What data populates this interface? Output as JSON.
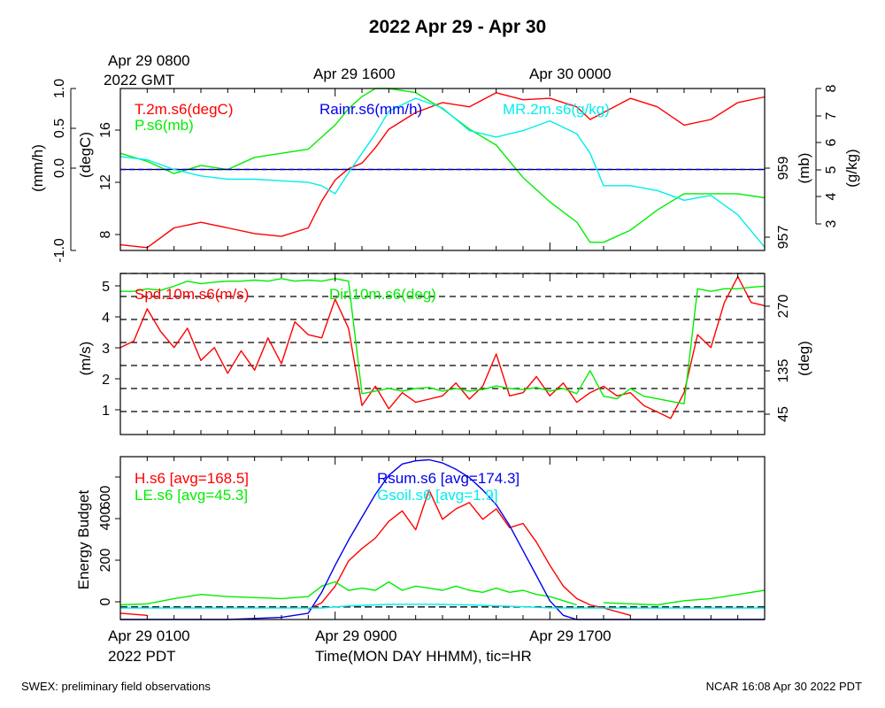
{
  "title": "2022 Apr 29 - Apr 30",
  "top_time_labels": {
    "first_date": "Apr 29 0800",
    "first_year": "2022 GMT",
    "second": "Apr 29 1600",
    "third": "Apr 30 0000"
  },
  "bottom_time_labels": {
    "first_date": "Apr 29 0100",
    "first_year": "2022 PDT",
    "second": "Apr 29 0900",
    "third": "Apr 29 1700"
  },
  "xlabel": "Time(MON DAY HHMM), tic=HR",
  "footer_left": "SWEX: preliminary field observations",
  "footer_right": "NCAR 16:08 Apr 30 2022 PDT",
  "colors": {
    "red": "#ff0000",
    "green": "#00ee00",
    "blue": "#0000ee",
    "cyan": "#00eeee",
    "axis": "#000000"
  },
  "chart_data": [
    {
      "type": "line",
      "panel": "met",
      "x_hours_pdt": [
        0,
        1,
        2,
        3,
        4,
        5,
        6,
        7,
        7.5,
        8,
        8.5,
        9,
        9.5,
        10,
        11,
        12,
        13,
        14,
        15,
        16,
        17,
        17.5,
        18,
        19,
        20,
        21,
        22,
        23,
        24
      ],
      "xlim": [
        0,
        24
      ],
      "axes": {
        "rain": {
          "label": "(mm/h)",
          "ticks": [
            "1.0",
            "0.5",
            "0.0",
            "-1.0"
          ],
          "range": [
            -1,
            1
          ]
        },
        "temp": {
          "label": "(degC)",
          "ticks": [
            "16",
            "12",
            "8"
          ],
          "range": [
            7,
            18.5
          ]
        },
        "pressure": {
          "label": "(mb)",
          "ticks": [
            "959",
            "957"
          ],
          "range": [
            956.8,
            960.8
          ]
        },
        "mr": {
          "label": "(g/kg)",
          "ticks": [
            "3",
            "4",
            "5",
            "6",
            "7",
            "8"
          ],
          "range": [
            3,
            8
          ]
        }
      },
      "series": [
        {
          "name": "T.2m.s6(degC)",
          "color": "#ff0000",
          "axis": "temp",
          "values": [
            7.4,
            7.2,
            8.6,
            9.0,
            8.6,
            8.2,
            8.0,
            8.6,
            10.5,
            12.0,
            12.8,
            13.2,
            14.3,
            15.6,
            16.8,
            17.5,
            17.2,
            18.2,
            17.7,
            17.8,
            17.2,
            16.3,
            16.8,
            17.8,
            17.2,
            15.9,
            16.3,
            17.5,
            17.9
          ]
        },
        {
          "name": "P.s6(mb)",
          "color": "#00ee00",
          "axis": "pressure",
          "values": [
            959.2,
            959.0,
            958.7,
            958.9,
            958.8,
            959.1,
            959.2,
            959.3,
            959.6,
            959.9,
            960.3,
            960.6,
            960.8,
            960.8,
            960.7,
            960.3,
            959.8,
            959.4,
            958.6,
            958.0,
            957.5,
            957.0,
            957.0,
            957.3,
            957.8,
            958.2,
            958.2,
            958.2,
            958.1
          ]
        },
        {
          "name": "Rainr.s6(mm/h)",
          "color": "#0000ee",
          "axis": "rain",
          "values": [
            0,
            0,
            0,
            0,
            0,
            0,
            0,
            0,
            0,
            0,
            0,
            0,
            0,
            0,
            0,
            0,
            0,
            0,
            0,
            0,
            0,
            0,
            0,
            0,
            0,
            0,
            0,
            0,
            0
          ]
        },
        {
          "name": "MR.2m.s6(g/kg)",
          "color": "#00eeee",
          "axis": "mr",
          "values": [
            5.9,
            5.8,
            5.5,
            5.3,
            5.2,
            5.2,
            5.15,
            5.1,
            5.0,
            4.75,
            5.4,
            6.0,
            6.6,
            7.3,
            7.7,
            7.4,
            6.7,
            6.5,
            6.7,
            7.0,
            6.6,
            6.0,
            5.0,
            5.0,
            4.85,
            4.55,
            4.7,
            4.1,
            3.1
          ]
        }
      ]
    },
    {
      "type": "line",
      "panel": "wind",
      "x_hours_pdt": [
        0,
        0.5,
        1,
        1.5,
        2,
        2.5,
        3,
        3.5,
        4,
        4.5,
        5,
        5.5,
        6,
        6.5,
        7,
        7.5,
        8,
        8.5,
        9,
        9.5,
        10,
        10.5,
        11,
        11.5,
        12,
        12.5,
        13,
        13.5,
        14,
        14.5,
        15,
        15.5,
        16,
        16.5,
        17,
        17.5,
        18,
        18.5,
        19,
        19.5,
        20,
        20.5,
        21,
        21.5,
        22,
        22.5,
        23,
        23.5,
        24
      ],
      "xlim": [
        0,
        24
      ],
      "axes": {
        "speed": {
          "label": "(m/s)",
          "ticks": [
            "1",
            "2",
            "3",
            "4",
            "5"
          ],
          "range": [
            0.3,
            5.3
          ]
        },
        "dir": {
          "label": "(deg)",
          "ticks": [
            "45",
            "135",
            "270"
          ],
          "range": [
            0,
            315
          ],
          "gridlines": [
            45,
            90,
            135,
            180,
            225,
            270,
            315
          ]
        }
      },
      "series": [
        {
          "name": "Spd.10m.s6(m/s)",
          "color": "#ff0000",
          "axis": "speed",
          "values": [
            3.0,
            3.2,
            4.2,
            3.5,
            3.0,
            3.6,
            2.6,
            3.0,
            2.2,
            2.9,
            2.3,
            3.3,
            2.5,
            3.8,
            3.4,
            3.3,
            4.5,
            3.6,
            1.2,
            1.8,
            1.1,
            1.6,
            1.3,
            1.4,
            1.5,
            1.9,
            1.4,
            1.8,
            2.8,
            1.5,
            1.6,
            2.1,
            1.5,
            1.9,
            1.3,
            1.6,
            1.8,
            1.5,
            1.6,
            1.2,
            1.0,
            0.8,
            1.6,
            3.4,
            3.0,
            4.4,
            5.2,
            4.4,
            4.3
          ]
        },
        {
          "name": "Dir.10m.s6(deg)",
          "color": "#00ee00",
          "axis": "dir",
          "values": [
            280,
            280,
            285,
            282,
            290,
            300,
            295,
            298,
            300,
            300,
            302,
            300,
            305,
            300,
            302,
            300,
            305,
            300,
            80,
            85,
            90,
            85,
            90,
            92,
            85,
            90,
            85,
            88,
            95,
            90,
            88,
            92,
            85,
            90,
            80,
            125,
            75,
            70,
            90,
            75,
            70,
            65,
            60,
            285,
            280,
            285,
            285,
            288,
            290
          ]
        }
      ]
    },
    {
      "type": "line",
      "panel": "energy",
      "ylabel": "Energy Budget",
      "x_hours_pdt": [
        0,
        1,
        2,
        3,
        4,
        5,
        6,
        7,
        7.5,
        8,
        8.5,
        9,
        9.5,
        10,
        10.5,
        11,
        11.5,
        12,
        12.5,
        13,
        13.5,
        14,
        14.5,
        15,
        15.5,
        16,
        16.5,
        17,
        17.5,
        18,
        19,
        20,
        21,
        22,
        23,
        24
      ],
      "xlim": [
        0,
        24
      ],
      "ylim": [
        -60,
        720
      ],
      "yticks": [
        "0",
        "200",
        "400",
        "600"
      ],
      "series": [
        {
          "name": "H.s6 [avg=168.5]",
          "color": "#ff0000",
          "values": [
            -30,
            -40,
            null,
            -35,
            null,
            null,
            null,
            -10,
            20,
            100,
            220,
            280,
            330,
            410,
            460,
            370,
            560,
            420,
            470,
            500,
            420,
            470,
            380,
            400,
            310,
            200,
            100,
            40,
            10,
            -5,
            -40,
            null,
            null,
            null,
            null,
            null
          ]
        },
        {
          "name": "LE.s6 [avg=45.3]",
          "color": "#00ee00",
          "values": [
            10,
            15,
            40,
            60,
            50,
            45,
            40,
            50,
            100,
            120,
            80,
            90,
            80,
            120,
            80,
            100,
            90,
            80,
            100,
            80,
            70,
            90,
            70,
            80,
            60,
            50,
            30,
            10,
            null,
            20,
            15,
            10,
            30,
            40,
            60,
            80
          ]
        },
        {
          "name": "Rsum.s6 [avg=174.3]",
          "color": "#0000ee",
          "values": [
            -60,
            -65,
            -65,
            -62,
            -62,
            -55,
            -50,
            -30,
            70,
            200,
            320,
            430,
            540,
            630,
            685,
            700,
            705,
            690,
            660,
            620,
            560,
            490,
            390,
            270,
            150,
            30,
            -40,
            -60,
            -65,
            -65,
            -65,
            -65,
            -65,
            -65,
            -65,
            -65
          ]
        },
        {
          "name": "Gsoil.s6 [avg=1.9]",
          "color": "#00eeee",
          "values": [
            -5,
            -5,
            -5,
            -5,
            -5,
            -5,
            -5,
            -5,
            -5,
            0,
            5,
            8,
            10,
            12,
            13,
            13,
            13,
            12,
            11,
            10,
            8,
            5,
            3,
            1,
            -2,
            -4,
            -5,
            -5,
            -5,
            -5,
            -5,
            -5,
            -5,
            -5,
            -5,
            -5
          ]
        }
      ]
    }
  ]
}
